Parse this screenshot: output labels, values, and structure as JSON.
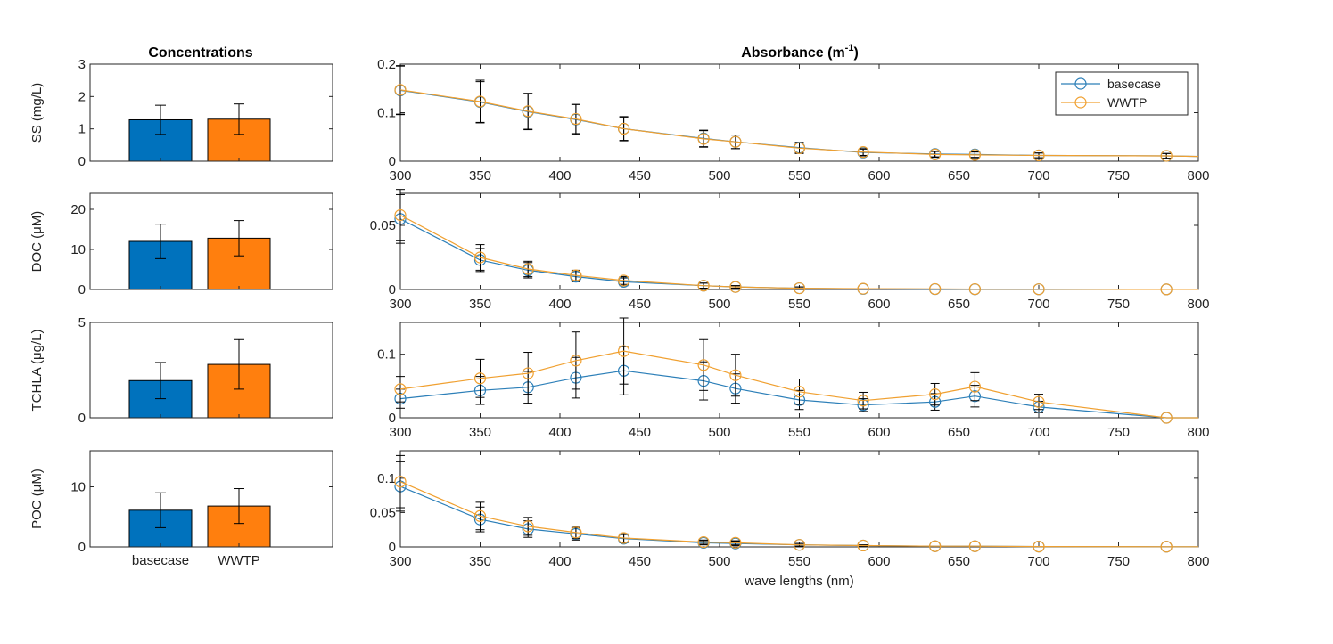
{
  "titles": {
    "concentrations": "Concentrations",
    "absorbance": "Absorbance (m",
    "absorbance_sup": "-1",
    "absorbance_close": ")"
  },
  "legend": {
    "position": "top-right",
    "entries": [
      "basecase",
      "WWTP"
    ]
  },
  "colors": {
    "basecase_bar": "#0072BD",
    "wwtp_bar": "#FF7F0E",
    "basecase_line": "#2C7FB8",
    "wwtp_line": "#F0A030",
    "axis": "#262626"
  },
  "chart_data": [
    {
      "type": "bar",
      "panel": "SS",
      "ylabel": "SS (mg/L)",
      "ylim": [
        0,
        3
      ],
      "yticks": [
        0,
        1,
        2,
        3
      ],
      "categories": [
        "basecase",
        "WWTP"
      ],
      "values": [
        1.28,
        1.3
      ],
      "errors": [
        0.45,
        0.47
      ],
      "show_xticks": false
    },
    {
      "type": "bar",
      "panel": "DOC",
      "ylabel": "DOC (μM)",
      "ylim": [
        0,
        24
      ],
      "yticks": [
        0,
        10,
        20
      ],
      "categories": [
        "basecase",
        "WWTP"
      ],
      "values": [
        12,
        12.8
      ],
      "errors": [
        4.3,
        4.4
      ],
      "show_xticks": false
    },
    {
      "type": "bar",
      "panel": "TCHLA",
      "ylabel": "TCHLA (μg/L)",
      "ylim": [
        0,
        5
      ],
      "yticks": [
        0,
        5
      ],
      "categories": [
        "basecase",
        "WWTP"
      ],
      "values": [
        1.95,
        2.8
      ],
      "errors": [
        0.95,
        1.3
      ],
      "show_xticks": false
    },
    {
      "type": "bar",
      "panel": "POC",
      "ylabel": "POC (μM)",
      "ylim": [
        0,
        16
      ],
      "yticks": [
        0,
        10
      ],
      "categories": [
        "basecase",
        "WWTP"
      ],
      "values": [
        6.1,
        6.8
      ],
      "errors": [
        2.9,
        2.9
      ],
      "show_xticks": true
    },
    {
      "type": "line",
      "panel": "SS",
      "xlim": [
        300,
        800
      ],
      "xticks": [
        300,
        350,
        400,
        450,
        500,
        550,
        600,
        650,
        700,
        750,
        800
      ],
      "ylim": [
        0,
        0.2
      ],
      "yticks": [
        0,
        0.1,
        0.2
      ],
      "ytick_labels": [
        "0",
        "0.1",
        "0.2"
      ],
      "x": [
        300,
        350,
        380,
        410,
        440,
        490,
        510,
        550,
        590,
        635,
        660,
        700,
        780,
        800
      ],
      "series": [
        {
          "name": "basecase",
          "values": [
            0.146,
            0.122,
            0.102,
            0.086,
            0.067,
            0.047,
            0.04,
            0.028,
            0.018,
            0.015,
            0.014,
            0.012,
            0.011,
            0.01
          ],
          "errors": [
            0.05,
            0.042,
            0.037,
            0.031,
            0.024,
            0.017,
            0.014,
            0.011,
            0.007,
            0.006,
            0.006,
            0.005,
            0.005,
            0
          ]
        },
        {
          "name": "WWTP",
          "values": [
            0.147,
            0.123,
            0.103,
            0.087,
            0.067,
            0.046,
            0.04,
            0.027,
            0.019,
            0.014,
            0.013,
            0.012,
            0.011,
            0.01
          ],
          "errors": [
            0.05,
            0.044,
            0.037,
            0.03,
            0.025,
            0.017,
            0.014,
            0.011,
            0.007,
            0.006,
            0.006,
            0.005,
            0.005,
            0
          ]
        }
      ],
      "show_legend": true
    },
    {
      "type": "line",
      "panel": "DOC",
      "xlim": [
        300,
        800
      ],
      "xticks": [
        300,
        350,
        400,
        450,
        500,
        550,
        600,
        650,
        700,
        750,
        800
      ],
      "ylim": [
        0,
        0.075
      ],
      "yticks": [
        0,
        0.05
      ],
      "ytick_labels": [
        "0",
        "0.05"
      ],
      "x": [
        300,
        350,
        380,
        410,
        440,
        490,
        510,
        550,
        590,
        635,
        660,
        700,
        780,
        800
      ],
      "series": [
        {
          "name": "basecase",
          "values": [
            0.055,
            0.023,
            0.015,
            0.01,
            0.006,
            0.003,
            0.002,
            0.001,
            0.0005,
            0.0003,
            0.0002,
            0.0002,
            0.0001,
            0.0001
          ],
          "errors": [
            0.019,
            0.009,
            0.006,
            0.004,
            0.003,
            0.002,
            0.001,
            0.001,
            0,
            0,
            0,
            0,
            0,
            0
          ]
        },
        {
          "name": "WWTP",
          "values": [
            0.058,
            0.025,
            0.016,
            0.011,
            0.007,
            0.003,
            0.002,
            0.001,
            0.0006,
            0.0004,
            0.0003,
            0.0002,
            0.0001,
            0.0001
          ],
          "errors": [
            0.02,
            0.01,
            0.006,
            0.004,
            0.003,
            0.002,
            0.001,
            0.001,
            0,
            0,
            0,
            0,
            0,
            0
          ]
        }
      ],
      "show_legend": false
    },
    {
      "type": "line",
      "panel": "TCHLA",
      "xlim": [
        300,
        800
      ],
      "xticks": [
        300,
        350,
        400,
        450,
        500,
        550,
        600,
        650,
        700,
        750,
        800
      ],
      "ylim": [
        0,
        0.15
      ],
      "yticks": [
        0,
        0.1
      ],
      "ytick_labels": [
        "0",
        "0.1"
      ],
      "x": [
        300,
        350,
        380,
        410,
        440,
        490,
        510,
        550,
        590,
        635,
        660,
        700,
        780,
        800
      ],
      "series": [
        {
          "name": "basecase",
          "values": [
            0.03,
            0.043,
            0.048,
            0.063,
            0.074,
            0.058,
            0.046,
            0.028,
            0.02,
            0.025,
            0.034,
            0.017,
            0,
            0
          ],
          "errors": [
            0.015,
            0.022,
            0.025,
            0.032,
            0.038,
            0.03,
            0.023,
            0.015,
            0.01,
            0.013,
            0.017,
            0.009,
            0,
            0
          ]
        },
        {
          "name": "WWTP",
          "values": [
            0.045,
            0.062,
            0.07,
            0.09,
            0.105,
            0.083,
            0.067,
            0.041,
            0.027,
            0.037,
            0.049,
            0.025,
            0,
            0
          ],
          "errors": [
            0.02,
            0.03,
            0.033,
            0.045,
            0.052,
            0.04,
            0.033,
            0.02,
            0.013,
            0.017,
            0.022,
            0.012,
            0,
            0
          ]
        }
      ],
      "show_legend": false
    },
    {
      "type": "line",
      "panel": "POC",
      "xlim": [
        300,
        800
      ],
      "xticks": [
        300,
        350,
        400,
        450,
        500,
        550,
        600,
        650,
        700,
        750,
        800
      ],
      "ylim": [
        0,
        0.14
      ],
      "yticks": [
        0,
        0.05,
        0.1
      ],
      "ytick_labels": [
        "0",
        "0.05",
        "0.1"
      ],
      "xlabel": "wave lengths (nm)",
      "x": [
        300,
        350,
        380,
        410,
        440,
        490,
        510,
        550,
        590,
        635,
        660,
        700,
        780,
        800
      ],
      "series": [
        {
          "name": "basecase",
          "values": [
            0.088,
            0.04,
            0.026,
            0.019,
            0.012,
            0.006,
            0.005,
            0.003,
            0.002,
            0.001,
            0.001,
            0.0005,
            0.0003,
            0.0003
          ],
          "errors": [
            0.036,
            0.018,
            0.012,
            0.009,
            0.006,
            0.003,
            0.003,
            0.002,
            0.001,
            0,
            0,
            0,
            0,
            0
          ]
        },
        {
          "name": "WWTP",
          "values": [
            0.095,
            0.045,
            0.03,
            0.021,
            0.013,
            0.007,
            0.006,
            0.003,
            0.002,
            0.001,
            0.001,
            0.0005,
            0.0003,
            0.0003
          ],
          "errors": [
            0.038,
            0.02,
            0.013,
            0.009,
            0.006,
            0.003,
            0.003,
            0.002,
            0.001,
            0,
            0,
            0,
            0,
            0
          ]
        }
      ],
      "show_legend": false
    }
  ]
}
